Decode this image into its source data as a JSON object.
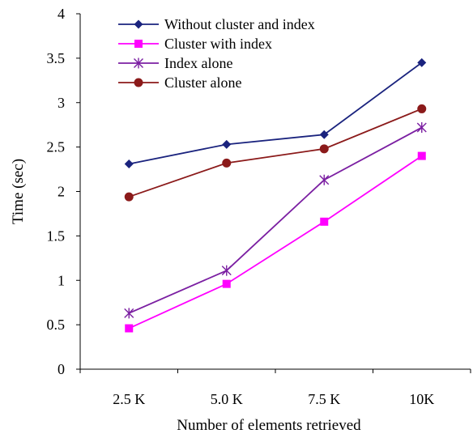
{
  "chart_data": {
    "type": "line",
    "title": "",
    "xlabel": "Number of elements retrieved",
    "ylabel": "Time (sec)",
    "categories": [
      "2.5 K",
      "5.0 K",
      "7.5 K",
      "10K"
    ],
    "ylim": [
      0,
      4
    ],
    "yticks": [
      "0",
      "0.5",
      "1",
      "1.5",
      "2",
      "2.5",
      "3",
      "3.5",
      "4"
    ],
    "grid": false,
    "legend_position": "top-left",
    "series": [
      {
        "name": "Without cluster and index",
        "values": [
          2.31,
          2.53,
          2.64,
          3.45
        ],
        "color": "#1a237e",
        "marker": "diamond"
      },
      {
        "name": "Cluster with index",
        "values": [
          0.46,
          0.96,
          1.66,
          2.4
        ],
        "color": "#ff00ff",
        "marker": "square"
      },
      {
        "name": "Index alone",
        "values": [
          0.63,
          1.11,
          2.13,
          2.72
        ],
        "color": "#7b1fa2",
        "marker": "asterisk"
      },
      {
        "name": "Cluster alone",
        "values": [
          1.94,
          2.32,
          2.48,
          2.93
        ],
        "color": "#8b1a1a",
        "marker": "circle"
      }
    ]
  }
}
